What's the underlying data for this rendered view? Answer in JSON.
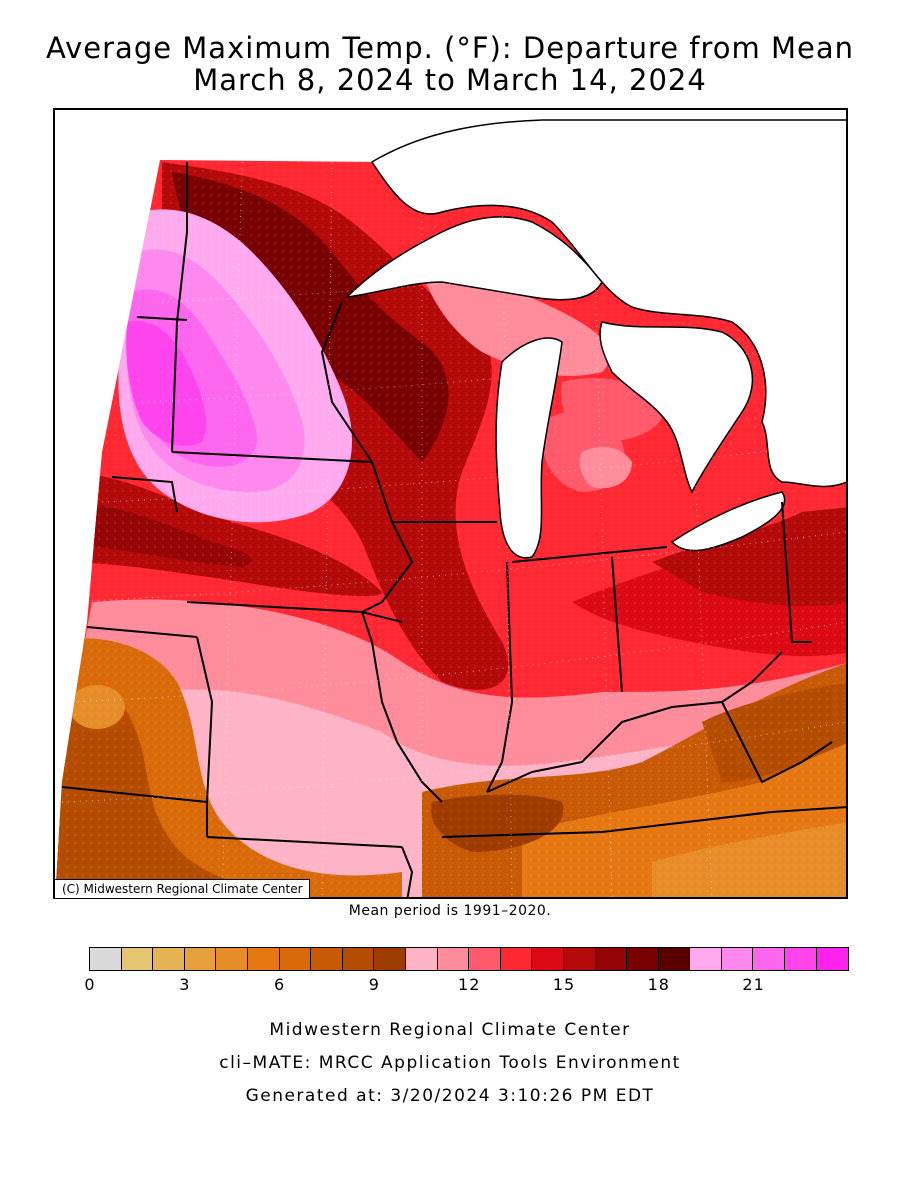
{
  "title": {
    "line1": "Average Maximum Temp. (°F): Departure from Mean",
    "line2": "March 8, 2024 to March 14, 2024"
  },
  "map": {
    "credit": "(C) Midwestern Regional Climate Center",
    "mean_period": "Mean period is 1991–2020."
  },
  "legend": {
    "colors": [
      "#d9d9d9",
      "#e6c673",
      "#e6b355",
      "#e6a03c",
      "#e68c28",
      "#e67814",
      "#d96a0a",
      "#c85a05",
      "#b44d00",
      "#9e3c00",
      "#ffb3c6",
      "#ff8c9a",
      "#ff5a6b",
      "#ff2833",
      "#dc0a14",
      "#b40a0a",
      "#960505",
      "#780000",
      "#5a0000",
      "#ffaaee",
      "#ff88ee",
      "#ff66ee",
      "#ff44ee",
      "#ff22ee"
    ],
    "tick_labels": [
      "0",
      "3",
      "6",
      "9",
      "12",
      "15",
      "18",
      "21"
    ]
  },
  "footer": {
    "line1": "Midwestern Regional Climate Center",
    "line2": "cli–MATE: MRCC Application Tools Environment",
    "line3": "Generated at: 3/20/2024 3:10:26 PM EDT"
  }
}
